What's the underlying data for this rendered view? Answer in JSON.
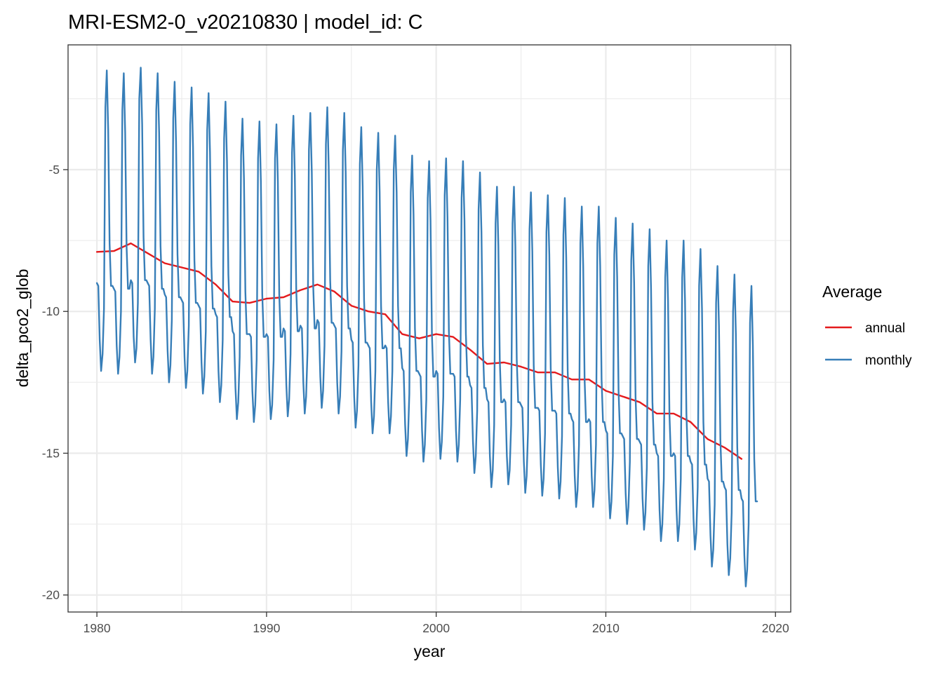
{
  "chart_data": {
    "type": "line",
    "title": "MRI-ESM2-0_v20210830 | model_id: C",
    "xlabel": "year",
    "ylabel": "delta_pco2_glob",
    "xlim": [
      1978.3,
      2020.9
    ],
    "ylim": [
      -20.6,
      -0.6
    ],
    "x_ticks": [
      1980,
      1990,
      2000,
      2010,
      2020
    ],
    "x_tick_labels": [
      "1980",
      "1990",
      "2000",
      "2010",
      "2020"
    ],
    "y_ticks": [
      -20,
      -15,
      -10,
      -5
    ],
    "y_tick_labels": [
      "-20",
      "-15",
      "-10",
      "-5"
    ],
    "grid": true,
    "legend": {
      "title": "Average",
      "position": "right",
      "entries": [
        {
          "label": "annual",
          "color": "#e41a1c"
        },
        {
          "label": "monthly",
          "color": "#377eb8"
        }
      ]
    },
    "series": [
      {
        "name": "annual",
        "color": "#e41a1c",
        "x": [
          1980,
          1981,
          1982,
          1983,
          1984,
          1985,
          1986,
          1987,
          1988,
          1989,
          1990,
          1991,
          1992,
          1993,
          1994,
          1995,
          1996,
          1997,
          1998,
          1999,
          2000,
          2001,
          2002,
          2003,
          2004,
          2005,
          2006,
          2007,
          2008,
          2009,
          2010,
          2011,
          2012,
          2013,
          2014,
          2015,
          2016,
          2017,
          2018
        ],
        "y": [
          -7.9,
          -7.87,
          -7.6,
          -7.95,
          -8.3,
          -8.45,
          -8.6,
          -9.05,
          -9.65,
          -9.7,
          -9.55,
          -9.5,
          -9.25,
          -9.05,
          -9.3,
          -9.8,
          -10.0,
          -10.1,
          -10.8,
          -10.95,
          -10.8,
          -10.9,
          -11.35,
          -11.85,
          -11.8,
          -11.95,
          -12.15,
          -12.15,
          -12.4,
          -12.4,
          -12.8,
          -13.0,
          -13.2,
          -13.6,
          -13.6,
          -13.9,
          -14.5,
          -14.8,
          -15.2
        ]
      },
      {
        "name": "monthly",
        "color": "#377eb8",
        "seasonal_shape": [
          0,
          -0.1,
          -2.0,
          -3.1,
          -2.5,
          -0.9,
          6.2,
          7.5,
          5.4,
          1.4,
          -0.1,
          -0.1
        ],
        "x": [
          1980.0,
          1980.083,
          1980.167,
          1980.25,
          1980.333,
          1980.417,
          1980.5,
          1980.583,
          1980.667,
          1980.75,
          1980.833,
          1980.917,
          1981.0,
          1981.083,
          1981.167,
          1981.25,
          1981.333,
          1981.417,
          1981.5,
          1981.583,
          1981.667,
          1981.75,
          1981.833,
          1981.917,
          1982.0,
          1982.083,
          1982.167,
          1982.25,
          1982.333,
          1982.417,
          1982.5,
          1982.583,
          1982.667,
          1982.75,
          1982.833,
          1982.917,
          1983.0,
          1983.083,
          1983.167,
          1983.25,
          1983.333,
          1983.417,
          1983.5,
          1983.583,
          1983.667,
          1983.75,
          1983.833,
          1983.917,
          1984.0,
          1984.083,
          1984.167,
          1984.25,
          1984.333,
          1984.417,
          1984.5,
          1984.583,
          1984.667,
          1984.75,
          1984.833,
          1984.917,
          1985.0,
          1985.083,
          1985.167,
          1985.25,
          1985.333,
          1985.417,
          1985.5,
          1985.583,
          1985.667,
          1985.75,
          1985.833,
          1985.917,
          1986.0,
          1986.083,
          1986.167,
          1986.25,
          1986.333,
          1986.417,
          1986.5,
          1986.583,
          1986.667,
          1986.75,
          1986.833,
          1986.917,
          1987.0,
          1987.083,
          1987.167,
          1987.25,
          1987.333,
          1987.417,
          1987.5,
          1987.583,
          1987.667,
          1987.75,
          1987.833,
          1987.917,
          1988.0,
          1988.083,
          1988.167,
          1988.25,
          1988.333,
          1988.417,
          1988.5,
          1988.583,
          1988.667,
          1988.75,
          1988.833,
          1988.917,
          1989.0,
          1989.083,
          1989.167,
          1989.25,
          1989.333,
          1989.417,
          1989.5,
          1989.583,
          1989.667,
          1989.75,
          1989.833,
          1989.917,
          1990.0,
          1990.083,
          1990.167,
          1990.25,
          1990.333,
          1990.417,
          1990.5,
          1990.583,
          1990.667,
          1990.75,
          1990.833,
          1990.917,
          1991.0,
          1991.083,
          1991.167,
          1991.25,
          1991.333,
          1991.417,
          1991.5,
          1991.583,
          1991.667,
          1991.75,
          1991.833,
          1991.917,
          1992.0,
          1992.083,
          1992.167,
          1992.25,
          1992.333,
          1992.417,
          1992.5,
          1992.583,
          1992.667,
          1992.75,
          1992.833,
          1992.917,
          1993.0,
          1993.083,
          1993.167,
          1993.25,
          1993.333,
          1993.417,
          1993.5,
          1993.583,
          1993.667,
          1993.75,
          1993.833,
          1993.917,
          1994.0,
          1994.083,
          1994.167,
          1994.25,
          1994.333,
          1994.417,
          1994.5,
          1994.583,
          1994.667,
          1994.75,
          1994.833,
          1994.917,
          1995.0,
          1995.083,
          1995.167,
          1995.25,
          1995.333,
          1995.417,
          1995.5,
          1995.583,
          1995.667,
          1995.75,
          1995.833,
          1995.917,
          1996.0,
          1996.083,
          1996.167,
          1996.25,
          1996.333,
          1996.417,
          1996.5,
          1996.583,
          1996.667,
          1996.75,
          1996.833,
          1996.917,
          1997.0,
          1997.083,
          1997.167,
          1997.25,
          1997.333,
          1997.417,
          1997.5,
          1997.583,
          1997.667,
          1997.75,
          1997.833,
          1997.917,
          1998.0,
          1998.083,
          1998.167,
          1998.25,
          1998.333,
          1998.417,
          1998.5,
          1998.583,
          1998.667,
          1998.75,
          1998.833,
          1998.917,
          1999.0,
          1999.083,
          1999.167,
          1999.25,
          1999.333,
          1999.417,
          1999.5,
          1999.583,
          1999.667,
          1999.75,
          1999.833,
          1999.917,
          2000.0,
          2000.083,
          2000.167,
          2000.25,
          2000.333,
          2000.417,
          2000.5,
          2000.583,
          2000.667,
          2000.75,
          2000.833,
          2000.917,
          2001.0,
          2001.083,
          2001.167,
          2001.25,
          2001.333,
          2001.417,
          2001.5,
          2001.583,
          2001.667,
          2001.75,
          2001.833,
          2001.917,
          2002.0,
          2002.083,
          2002.167,
          2002.25,
          2002.333,
          2002.417,
          2002.5,
          2002.583,
          2002.667,
          2002.75,
          2002.833,
          2002.917,
          2003.0,
          2003.083,
          2003.167,
          2003.25,
          2003.333,
          2003.417,
          2003.5,
          2003.583,
          2003.667,
          2003.75,
          2003.833,
          2003.917,
          2004.0,
          2004.083,
          2004.167,
          2004.25,
          2004.333,
          2004.417,
          2004.5,
          2004.583,
          2004.667,
          2004.75,
          2004.833,
          2004.917,
          2005.0,
          2005.083,
          2005.167,
          2005.25,
          2005.333,
          2005.417,
          2005.5,
          2005.583,
          2005.667,
          2005.75,
          2005.833,
          2005.917,
          2006.0,
          2006.083,
          2006.167,
          2006.25,
          2006.333,
          2006.417,
          2006.5,
          2006.583,
          2006.667,
          2006.75,
          2006.833,
          2006.917,
          2007.0,
          2007.083,
          2007.167,
          2007.25,
          2007.333,
          2007.417,
          2007.5,
          2007.583,
          2007.667,
          2007.75,
          2007.833,
          2007.917,
          2008.0,
          2008.083,
          2008.167,
          2008.25,
          2008.333,
          2008.417,
          2008.5,
          2008.583,
          2008.667,
          2008.75,
          2008.833,
          2008.917,
          2009.0,
          2009.083,
          2009.167,
          2009.25,
          2009.333,
          2009.417,
          2009.5,
          2009.583,
          2009.667,
          2009.75,
          2009.833,
          2009.917,
          2010.0,
          2010.083,
          2010.167,
          2010.25,
          2010.333,
          2010.417,
          2010.5,
          2010.583,
          2010.667,
          2010.75,
          2010.833,
          2010.917,
          2011.0,
          2011.083,
          2011.167,
          2011.25,
          2011.333,
          2011.417,
          2011.5,
          2011.583,
          2011.667,
          2011.75,
          2011.833,
          2011.917,
          2012.0,
          2012.083,
          2012.167,
          2012.25,
          2012.333,
          2012.417,
          2012.5,
          2012.583,
          2012.667,
          2012.75,
          2012.833,
          2012.917,
          2013.0,
          2013.083,
          2013.167,
          2013.25,
          2013.333,
          2013.417,
          2013.5,
          2013.583,
          2013.667,
          2013.75,
          2013.833,
          2013.917,
          2014.0,
          2014.083,
          2014.167,
          2014.25,
          2014.333,
          2014.417,
          2014.5,
          2014.583,
          2014.667,
          2014.75,
          2014.833,
          2014.917,
          2015.0,
          2015.083,
          2015.167,
          2015.25,
          2015.333,
          2015.417,
          2015.5,
          2015.583,
          2015.667,
          2015.75,
          2015.833,
          2015.917,
          2016.0,
          2016.083,
          2016.167,
          2016.25,
          2016.333,
          2016.417,
          2016.5,
          2016.583,
          2016.667,
          2016.75,
          2016.833,
          2016.917,
          2017.0,
          2017.083,
          2017.167,
          2017.25,
          2017.333,
          2017.417,
          2017.5,
          2017.583,
          2017.667,
          2017.75,
          2017.833,
          2017.917,
          2018.0,
          2018.083,
          2018.167,
          2018.25,
          2018.333,
          2018.417,
          2018.5,
          2018.583,
          2018.667,
          2018.75,
          2018.833,
          2018.917
        ],
        "y": [
          -9.0,
          -9.1,
          -11.0,
          -12.1,
          -11.5,
          -9.9,
          -2.8,
          -1.5,
          -3.6,
          -7.6,
          -9.1,
          -9.1,
          -9.2,
          -9.3,
          -11.2,
          -12.2,
          -11.6,
          -10.0,
          -2.9,
          -1.6,
          -3.7,
          -7.7,
          -9.2,
          -9.2,
          -8.9,
          -9.0,
          -10.9,
          -11.8,
          -11.3,
          -9.7,
          -2.5,
          -1.4,
          -3.4,
          -7.4,
          -8.9,
          -8.9,
          -9.0,
          -9.1,
          -11.0,
          -12.2,
          -11.6,
          -9.9,
          -2.9,
          -1.6,
          -3.7,
          -7.7,
          -9.2,
          -9.2,
          -9.4,
          -9.5,
          -11.4,
          -12.5,
          -11.9,
          -10.3,
          -3.2,
          -1.9,
          -4.0,
          -8.0,
          -9.5,
          -9.5,
          -9.6,
          -9.7,
          -11.6,
          -12.7,
          -12.1,
          -10.5,
          -3.4,
          -2.1,
          -4.2,
          -8.2,
          -9.7,
          -9.7,
          -9.8,
          -9.9,
          -11.8,
          -12.9,
          -12.3,
          -10.7,
          -3.6,
          -2.3,
          -4.4,
          -8.4,
          -9.9,
          -9.9,
          -10.1,
          -10.2,
          -12.1,
          -13.2,
          -12.6,
          -11.0,
          -3.9,
          -2.6,
          -4.7,
          -8.7,
          -10.2,
          -10.2,
          -10.7,
          -10.8,
          -12.7,
          -13.8,
          -13.2,
          -11.6,
          -4.5,
          -3.2,
          -5.3,
          -9.3,
          -10.8,
          -10.8,
          -10.8,
          -10.9,
          -12.8,
          -13.9,
          -13.3,
          -11.7,
          -4.6,
          -3.3,
          -5.4,
          -9.4,
          -10.9,
          -10.9,
          -10.8,
          -10.9,
          -12.8,
          -13.8,
          -13.3,
          -11.7,
          -4.6,
          -3.4,
          -5.4,
          -9.4,
          -10.9,
          -10.9,
          -10.6,
          -10.7,
          -12.6,
          -13.7,
          -13.1,
          -11.5,
          -4.4,
          -3.1,
          -5.2,
          -9.2,
          -10.7,
          -10.7,
          -10.5,
          -10.6,
          -12.5,
          -13.6,
          -13.0,
          -11.4,
          -4.3,
          -3.0,
          -5.1,
          -9.1,
          -10.6,
          -10.6,
          -10.3,
          -10.4,
          -12.3,
          -13.4,
          -12.8,
          -11.2,
          -4.1,
          -2.8,
          -4.9,
          -8.9,
          -10.4,
          -10.4,
          -10.5,
          -10.6,
          -12.5,
          -13.6,
          -13.0,
          -11.4,
          -4.3,
          -3.0,
          -5.1,
          -9.1,
          -10.6,
          -10.6,
          -11.0,
          -11.1,
          -13.0,
          -14.1,
          -13.5,
          -11.9,
          -4.8,
          -3.5,
          -5.6,
          -9.6,
          -11.1,
          -11.1,
          -11.2,
          -11.3,
          -13.2,
          -14.3,
          -13.7,
          -12.1,
          -5.0,
          -3.7,
          -5.8,
          -9.8,
          -11.3,
          -11.3,
          -11.2,
          -11.3,
          -13.2,
          -14.3,
          -13.7,
          -12.1,
          -5.0,
          -3.8,
          -5.8,
          -9.8,
          -11.3,
          -11.3,
          -12.0,
          -12.1,
          -14.0,
          -15.1,
          -14.5,
          -12.9,
          -5.8,
          -4.5,
          -6.6,
          -10.6,
          -12.1,
          -12.1,
          -12.2,
          -12.3,
          -14.2,
          -15.3,
          -14.7,
          -13.1,
          -6.0,
          -4.7,
          -6.8,
          -10.8,
          -12.3,
          -12.3,
          -12.1,
          -12.2,
          -14.1,
          -15.2,
          -14.6,
          -13.0,
          -5.9,
          -4.6,
          -6.7,
          -10.7,
          -12.2,
          -12.2,
          -12.2,
          -12.3,
          -14.2,
          -15.3,
          -14.7,
          -13.1,
          -6.0,
          -4.7,
          -6.8,
          -10.8,
          -12.3,
          -12.3,
          -12.6,
          -12.7,
          -14.6,
          -15.7,
          -15.1,
          -13.5,
          -6.4,
          -5.1,
          -7.2,
          -11.2,
          -12.7,
          -12.7,
          -13.1,
          -13.2,
          -15.1,
          -16.2,
          -15.6,
          -14.0,
          -6.9,
          -5.6,
          -7.7,
          -11.7,
          -13.2,
          -13.2,
          -13.1,
          -13.2,
          -15.1,
          -16.1,
          -15.6,
          -14.0,
          -6.9,
          -5.6,
          -7.7,
          -11.7,
          -13.2,
          -13.2,
          -13.3,
          -13.4,
          -15.3,
          -16.4,
          -15.8,
          -14.2,
          -7.1,
          -5.8,
          -7.9,
          -11.9,
          -13.4,
          -13.4,
          -13.4,
          -13.5,
          -15.4,
          -16.5,
          -15.9,
          -14.3,
          -7.2,
          -5.9,
          -8.0,
          -12.0,
          -13.5,
          -13.5,
          -13.5,
          -13.6,
          -15.5,
          -16.6,
          -16.0,
          -14.4,
          -7.3,
          -6.0,
          -8.1,
          -12.1,
          -13.6,
          -13.6,
          -13.8,
          -13.9,
          -15.8,
          -16.9,
          -16.3,
          -14.7,
          -7.6,
          -6.3,
          -8.4,
          -12.4,
          -13.9,
          -13.9,
          -13.8,
          -13.9,
          -15.8,
          -16.9,
          -16.3,
          -14.7,
          -7.6,
          -6.3,
          -8.4,
          -12.4,
          -13.9,
          -13.9,
          -14.2,
          -14.3,
          -16.2,
          -17.3,
          -16.7,
          -15.1,
          -8.0,
          -6.7,
          -8.8,
          -12.8,
          -14.3,
          -14.3,
          -14.4,
          -14.5,
          -16.4,
          -17.5,
          -16.9,
          -15.3,
          -8.2,
          -6.9,
          -9.0,
          -13.0,
          -14.5,
          -14.5,
          -14.6,
          -14.7,
          -16.6,
          -17.7,
          -17.1,
          -15.5,
          -8.4,
          -7.1,
          -9.2,
          -13.2,
          -14.7,
          -14.7,
          -15.0,
          -15.1,
          -17.0,
          -18.1,
          -17.5,
          -15.9,
          -8.8,
          -7.5,
          -9.6,
          -13.6,
          -15.1,
          -15.1,
          -15.0,
          -15.1,
          -17.0,
          -18.1,
          -17.5,
          -15.9,
          -8.8,
          -7.5,
          -9.6,
          -13.6,
          -15.1,
          -15.1,
          -15.3,
          -15.4,
          -17.3,
          -18.4,
          -17.8,
          -16.2,
          -9.1,
          -7.8,
          -9.9,
          -13.9,
          -15.4,
          -15.4,
          -15.9,
          -16.0,
          -17.9,
          -19.0,
          -18.4,
          -16.8,
          -9.7,
          -8.4,
          -10.5,
          -14.5,
          -16.0,
          -16.0,
          -16.2,
          -16.3,
          -18.2,
          -19.3,
          -18.7,
          -17.1,
          -10.0,
          -8.7,
          -10.8,
          -14.8,
          -16.3,
          -16.3,
          -16.6,
          -16.7,
          -18.6,
          -19.7,
          -19.1,
          -17.5,
          -10.4,
          -9.1,
          -11.2,
          -15.2,
          -16.7,
          -16.7
        ]
      }
    ]
  }
}
